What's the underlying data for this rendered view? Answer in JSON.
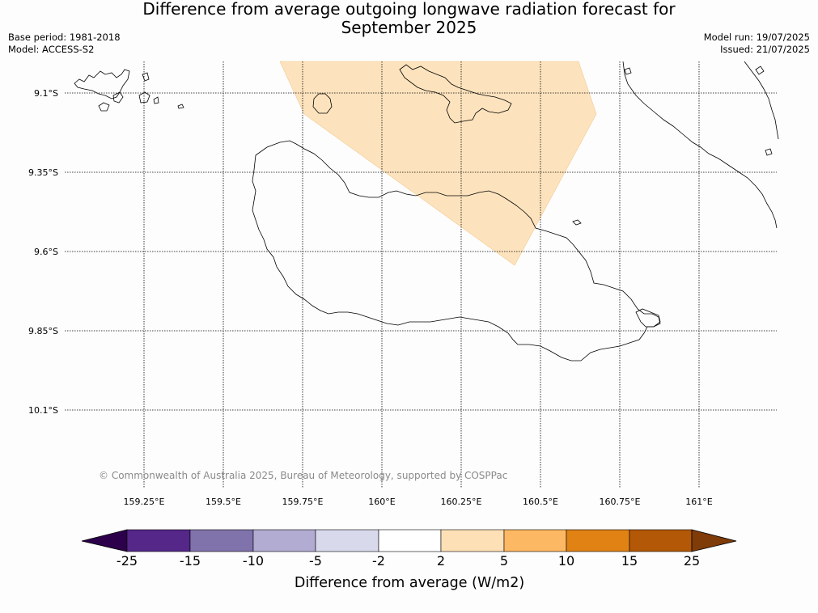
{
  "header": {
    "title_line1": "Difference from average outgoing longwave radiation forecast for",
    "title_line2": "September 2025",
    "base_period": "Base period: 1981-2018",
    "model": "Model: ACCESS-S2",
    "model_run": "Model run: 19/07/2025",
    "issued": "Issued: 21/07/2025"
  },
  "map": {
    "latitudes": [
      "9.1°S",
      "9.35°S",
      "9.6°S",
      "9.85°S",
      "10.1°S"
    ],
    "longitudes": [
      "159.25°E",
      "159.5°E",
      "159.75°E",
      "160°E",
      "160.25°E",
      "160.5°E",
      "160.75°E",
      "161°E"
    ],
    "copyright": "© Commonwealth of Australia 2025, Bureau of Meteorology, supported by COSPPac",
    "anomaly_area": {
      "bin": "2 to 5",
      "color": "#fde3bd"
    },
    "gridline_color": "#000000",
    "coastline_color": "#000000"
  },
  "colorbar": {
    "label": "Difference from average (W/m2)",
    "ticks": [
      "-25",
      "-15",
      "-10",
      "-5",
      "-2",
      "2",
      "5",
      "10",
      "15",
      "25"
    ],
    "colors": [
      "#542788",
      "#8073ac",
      "#b2abd2",
      "#d8daeb",
      "#ffffff",
      "#fee0b6",
      "#fdb863",
      "#e08214",
      "#b35806"
    ],
    "extend_low_color": "#2d004b",
    "extend_high_color": "#7f3b08"
  }
}
